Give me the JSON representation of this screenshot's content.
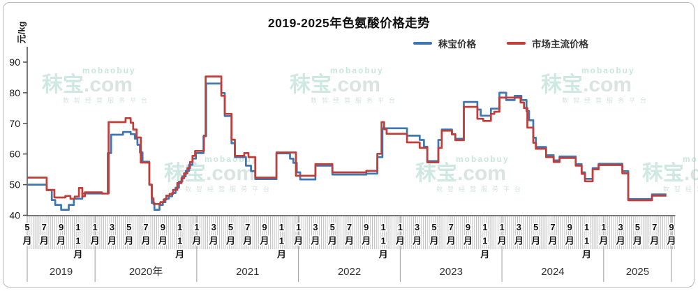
{
  "frame": {
    "title": "2019-2025年色氨酸价格走势",
    "y_unit": "元/kg"
  },
  "legend": [
    {
      "label": "秣宝价格",
      "color": "#3D76B3"
    },
    {
      "label": "市场主流价格",
      "color": "#C13D38"
    }
  ],
  "watermark": {
    "latin": "mobaobuy",
    "brand": "秣宝",
    "domain": ".com",
    "slogan": "数智经营服务平台"
  },
  "chart_data": {
    "type": "line",
    "title": "2019-2025年色氨酸价格走势",
    "xlabel": "",
    "ylabel": "元/kg",
    "ylim": [
      40,
      90
    ],
    "y_ticks": [
      40,
      50,
      60,
      70,
      80,
      90
    ],
    "grid": false,
    "legend_position": "top",
    "x_axis_note": "month index 0 = 2019-05, 76 = 2025-09, weekly minor ticks",
    "x_range_months": [
      0,
      76
    ],
    "x_ticks": [
      {
        "m": 0,
        "label": "5月"
      },
      {
        "m": 2,
        "label": "7月"
      },
      {
        "m": 4,
        "label": "9月"
      },
      {
        "m": 6,
        "label": "11月"
      },
      {
        "m": 8,
        "label": "1月"
      },
      {
        "m": 10,
        "label": "3月"
      },
      {
        "m": 12,
        "label": "5月"
      },
      {
        "m": 14,
        "label": "7月"
      },
      {
        "m": 16,
        "label": "9月"
      },
      {
        "m": 18,
        "label": "11月"
      },
      {
        "m": 20,
        "label": "1月"
      },
      {
        "m": 22,
        "label": "3月"
      },
      {
        "m": 24,
        "label": "5月"
      },
      {
        "m": 26,
        "label": "7月"
      },
      {
        "m": 28,
        "label": "9月"
      },
      {
        "m": 30,
        "label": "11月"
      },
      {
        "m": 32,
        "label": "1月"
      },
      {
        "m": 34,
        "label": "3月"
      },
      {
        "m": 36,
        "label": "5月"
      },
      {
        "m": 38,
        "label": "7月"
      },
      {
        "m": 40,
        "label": "9月"
      },
      {
        "m": 42,
        "label": "11月"
      },
      {
        "m": 44,
        "label": "1月"
      },
      {
        "m": 46,
        "label": "3月"
      },
      {
        "m": 48,
        "label": "5月"
      },
      {
        "m": 50,
        "label": "7月"
      },
      {
        "m": 52,
        "label": "9月"
      },
      {
        "m": 54,
        "label": "11月"
      },
      {
        "m": 56,
        "label": "1月"
      },
      {
        "m": 58,
        "label": "3月"
      },
      {
        "m": 60,
        "label": "5月"
      },
      {
        "m": 62,
        "label": "7月"
      },
      {
        "m": 64,
        "label": "9月"
      },
      {
        "m": 66,
        "label": "11月"
      },
      {
        "m": 68,
        "label": "1月"
      },
      {
        "m": 70,
        "label": "3月"
      },
      {
        "m": 72,
        "label": "5月"
      },
      {
        "m": 74,
        "label": "7月"
      },
      {
        "m": 76,
        "label": "9月"
      }
    ],
    "years": [
      {
        "label": "2019",
        "from": 0,
        "to": 8
      },
      {
        "label": "2020年",
        "from": 8,
        "to": 20
      },
      {
        "label": "2021",
        "from": 20,
        "to": 32
      },
      {
        "label": "2022",
        "from": 32,
        "to": 44
      },
      {
        "label": "2023",
        "from": 44,
        "to": 56
      },
      {
        "label": "2024",
        "from": 56,
        "to": 68
      },
      {
        "label": "2025",
        "from": 68,
        "to": 76
      }
    ],
    "year_dividers": [
      0,
      8,
      20,
      32,
      44,
      56,
      68,
      76
    ],
    "series": [
      {
        "name": "秣宝价格",
        "color": "#3D76B3",
        "end": 75.4,
        "points": [
          [
            0,
            50
          ],
          [
            2.3,
            48.2
          ],
          [
            2.9,
            45
          ],
          [
            3.3,
            43.4
          ],
          [
            4.0,
            41.8
          ],
          [
            4.9,
            43.4
          ],
          [
            5.5,
            45.4
          ],
          [
            6.5,
            47.1
          ],
          [
            9.5,
            60.3
          ],
          [
            9.9,
            66.3
          ],
          [
            11.3,
            67.2
          ],
          [
            12.2,
            66.5
          ],
          [
            12.7,
            65
          ],
          [
            13.0,
            63
          ],
          [
            13.3,
            60.5
          ],
          [
            13.6,
            57.5
          ],
          [
            14.4,
            50
          ],
          [
            14.7,
            44
          ],
          [
            15.0,
            41.8
          ],
          [
            15.6,
            43.4
          ],
          [
            16.0,
            44.3
          ],
          [
            16.3,
            45.4
          ],
          [
            16.7,
            46.2
          ],
          [
            17.1,
            47.3
          ],
          [
            17.5,
            49
          ],
          [
            17.9,
            51
          ],
          [
            18.3,
            52.7
          ],
          [
            18.7,
            54.5
          ],
          [
            19.1,
            56.5
          ],
          [
            19.5,
            58.5
          ],
          [
            19.9,
            60.3
          ],
          [
            20.8,
            65.8
          ],
          [
            21.1,
            83
          ],
          [
            22.9,
            79.9
          ],
          [
            23.3,
            72.4
          ],
          [
            24.1,
            63.5
          ],
          [
            24.5,
            59
          ],
          [
            25.8,
            56.2
          ],
          [
            26.4,
            54.4
          ],
          [
            26.9,
            51.8
          ],
          [
            29.4,
            60.2
          ],
          [
            31.0,
            58.5
          ],
          [
            31.4,
            57.1
          ],
          [
            31.8,
            54
          ],
          [
            32.2,
            51.7
          ],
          [
            34.0,
            56.2
          ],
          [
            36.0,
            53.3
          ],
          [
            40.0,
            53.6
          ],
          [
            41.3,
            59
          ],
          [
            41.9,
            68.4
          ],
          [
            44.8,
            66
          ],
          [
            46.3,
            64.6
          ],
          [
            46.8,
            62.4
          ],
          [
            47.2,
            57.7
          ],
          [
            48.5,
            64.6
          ],
          [
            48.9,
            68
          ],
          [
            50.1,
            66.5
          ],
          [
            50.5,
            65
          ],
          [
            51.5,
            77
          ],
          [
            53.1,
            74.5
          ],
          [
            53.5,
            72.5
          ],
          [
            54.7,
            74.8
          ],
          [
            55.7,
            80
          ],
          [
            56.5,
            77.6
          ],
          [
            57.5,
            79
          ],
          [
            58.3,
            77.6
          ],
          [
            58.9,
            74
          ],
          [
            59.2,
            71
          ],
          [
            59.7,
            65.3
          ],
          [
            60.0,
            62.3
          ],
          [
            61.2,
            59.6
          ],
          [
            62.1,
            57.9
          ],
          [
            62.8,
            59.2
          ],
          [
            64.7,
            56.7
          ],
          [
            65.4,
            54
          ],
          [
            65.8,
            51.9
          ],
          [
            66.7,
            55.4
          ],
          [
            67.4,
            56.8
          ],
          [
            70.2,
            54.4
          ],
          [
            70.9,
            45.3
          ],
          [
            73.7,
            46.8
          ]
        ]
      },
      {
        "name": "市场主流价格",
        "color": "#C13D38",
        "end": 75.4,
        "points": [
          [
            0,
            52.3
          ],
          [
            2.3,
            48.3
          ],
          [
            3.2,
            45.8
          ],
          [
            4.5,
            46.3
          ],
          [
            5.1,
            45.4
          ],
          [
            5.6,
            46.1
          ],
          [
            6.1,
            48.9
          ],
          [
            6.5,
            46.2
          ],
          [
            6.8,
            47.5
          ],
          [
            8.8,
            47.1
          ],
          [
            9.6,
            70.4
          ],
          [
            11.6,
            71.7
          ],
          [
            12.2,
            70.2
          ],
          [
            12.5,
            68
          ],
          [
            12.9,
            65.4
          ],
          [
            13.4,
            57.2
          ],
          [
            14.4,
            50
          ],
          [
            14.7,
            45.5
          ],
          [
            14.9,
            43.7
          ],
          [
            15.7,
            44.3
          ],
          [
            16.1,
            45.2
          ],
          [
            16.4,
            46.4
          ],
          [
            16.8,
            47
          ],
          [
            17.2,
            48.3
          ],
          [
            17.7,
            50.5
          ],
          [
            18.2,
            52.1
          ],
          [
            18.5,
            53.7
          ],
          [
            18.9,
            55.4
          ],
          [
            19.2,
            57.4
          ],
          [
            19.5,
            59.4
          ],
          [
            19.8,
            61
          ],
          [
            20.85,
            66
          ],
          [
            21.05,
            85.3
          ],
          [
            22.9,
            79
          ],
          [
            23.3,
            73.1
          ],
          [
            24.1,
            64.7
          ],
          [
            24.5,
            59.4
          ],
          [
            25.6,
            60.3
          ],
          [
            26.1,
            59
          ],
          [
            26.9,
            52.3
          ],
          [
            29.4,
            60.5
          ],
          [
            31.7,
            52.9
          ],
          [
            34.0,
            56.7
          ],
          [
            36.0,
            54
          ],
          [
            40.0,
            54.5
          ],
          [
            41.3,
            60.1
          ],
          [
            41.8,
            70.4
          ],
          [
            42.1,
            68.1
          ],
          [
            42.4,
            66.6
          ],
          [
            44.8,
            63.8
          ],
          [
            46.3,
            62
          ],
          [
            47.2,
            57.3
          ],
          [
            48.5,
            62
          ],
          [
            48.9,
            67.6
          ],
          [
            50.1,
            66.4
          ],
          [
            50.5,
            64.5
          ],
          [
            51.5,
            75.4
          ],
          [
            53.1,
            71.5
          ],
          [
            53.8,
            70.8
          ],
          [
            54.7,
            73.1
          ],
          [
            55.1,
            73.8
          ],
          [
            55.7,
            78.4
          ],
          [
            58.2,
            76.8
          ],
          [
            58.6,
            75
          ],
          [
            59.0,
            68.6
          ],
          [
            59.7,
            63.7
          ],
          [
            60.0,
            61.7
          ],
          [
            61.2,
            59
          ],
          [
            62.1,
            57.4
          ],
          [
            62.8,
            58.7
          ],
          [
            64.7,
            56.2
          ],
          [
            65.4,
            53.5
          ],
          [
            65.8,
            51.1
          ],
          [
            66.7,
            55
          ],
          [
            67.4,
            56.4
          ],
          [
            70.2,
            53.7
          ],
          [
            70.9,
            44.9
          ],
          [
            73.7,
            46.4
          ]
        ]
      }
    ]
  }
}
